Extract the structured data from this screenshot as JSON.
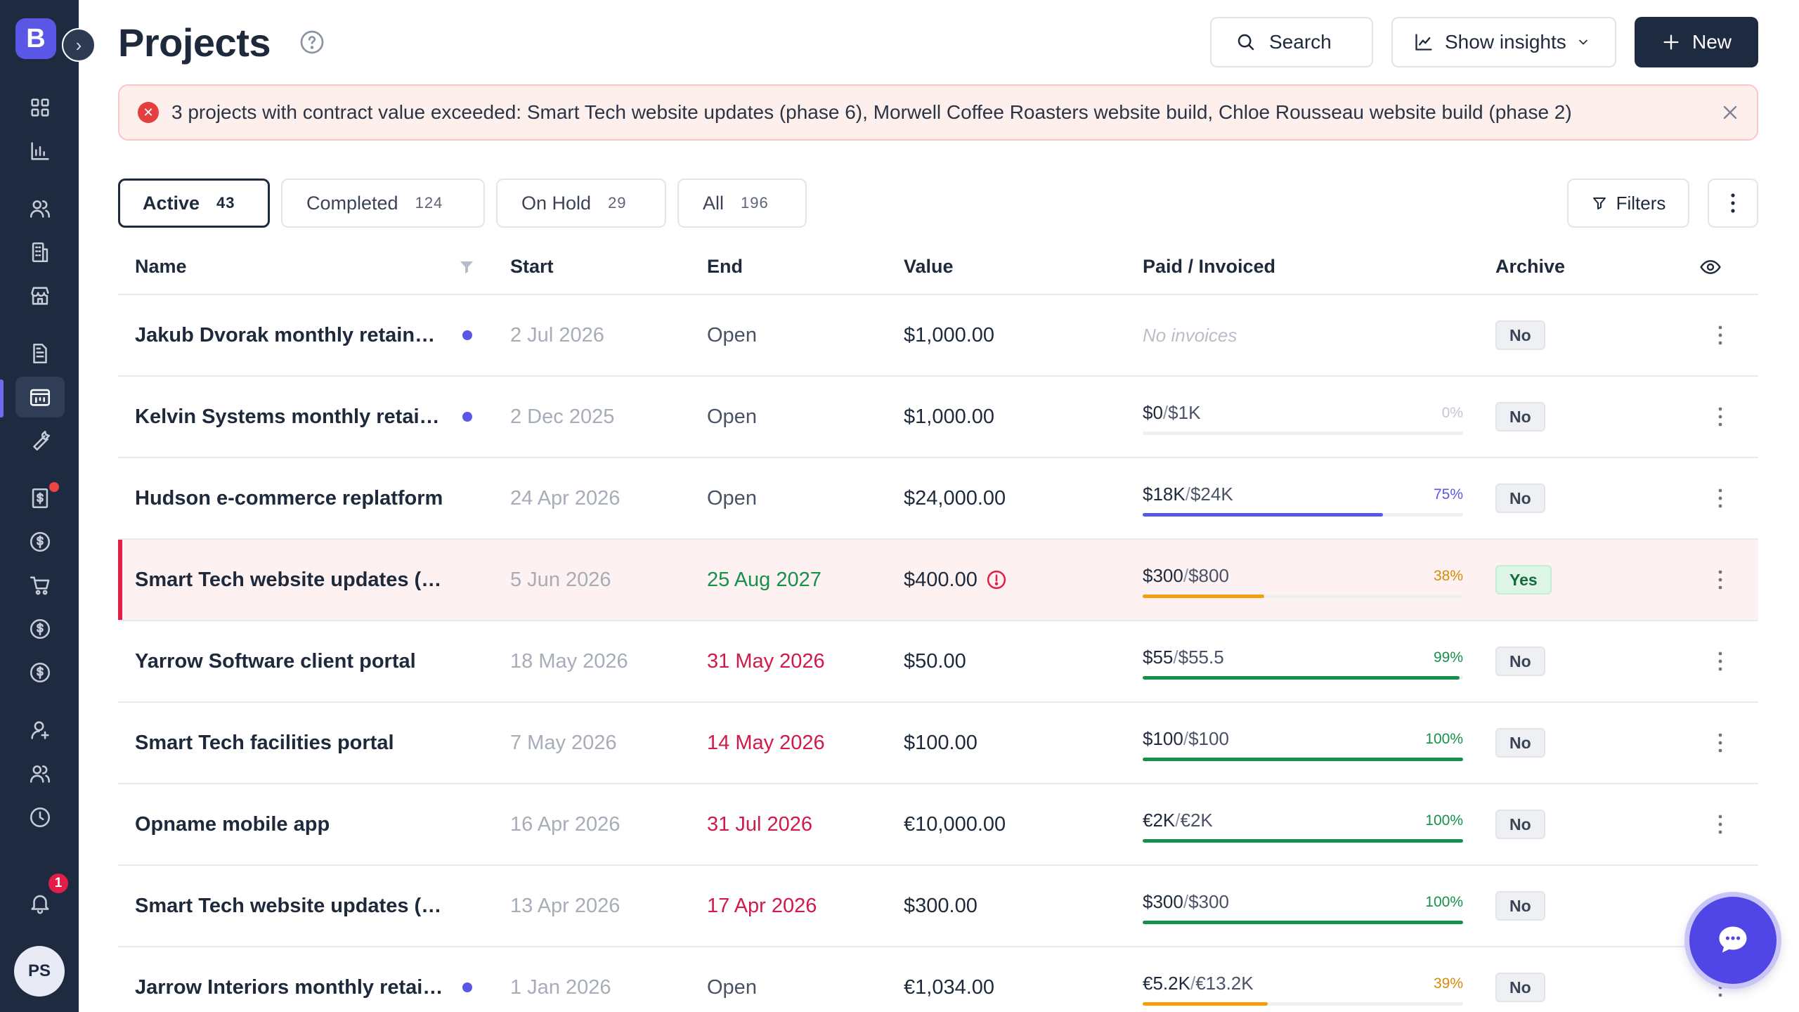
{
  "app": {
    "logo_letter": "B",
    "avatar_initials": "PS",
    "notification_count": "1"
  },
  "header": {
    "title": "Projects",
    "search_label": "Search",
    "insights_label": "Show insights",
    "new_label": "New"
  },
  "alert": {
    "message": "3 projects with contract value exceeded: Smart Tech website updates (phase 6), Morwell Coffee Roasters website build, Chloe Rousseau website build (phase 2)"
  },
  "tabs": [
    {
      "label": "Active",
      "count": "43"
    },
    {
      "label": "Completed",
      "count": "124"
    },
    {
      "label": "On Hold",
      "count": "29"
    },
    {
      "label": "All",
      "count": "196"
    }
  ],
  "filters_label": "Filters",
  "columns": {
    "name": "Name",
    "start": "Start",
    "end": "End",
    "value": "Value",
    "paid": "Paid / Invoiced",
    "archive": "Archive"
  },
  "colors": {
    "accent": "#5b57e6",
    "sidebar": "#1e2a3f",
    "danger": "#e11d48",
    "success": "#16914b",
    "warning": "#f59e0b"
  },
  "rows": [
    {
      "name": "Jakub Dvorak monthly retainer...",
      "dot": true,
      "start": "2 Jul 2026",
      "end": "Open",
      "end_status": "open",
      "value": "$1,000.00",
      "warning": false,
      "no_invoices": "No invoices",
      "paid": "",
      "invoiced": "",
      "percent_label": "",
      "percent": null,
      "archive": "No"
    },
    {
      "name": "Kelvin Systems monthly retainer",
      "dot": true,
      "start": "2 Dec 2025",
      "end": "Open",
      "end_status": "open",
      "value": "$1,000.00",
      "warning": false,
      "paid": "$0",
      "invoiced": "$1K",
      "percent_label": "0%",
      "percent": 0,
      "archive": "No"
    },
    {
      "name": "Hudson e-commerce replatform",
      "dot": false,
      "start": "24 Apr 2026",
      "end": "Open",
      "end_status": "open",
      "value": "$24,000.00",
      "warning": false,
      "paid": "$18K",
      "invoiced": "$24K",
      "percent_label": "75%",
      "percent": 75,
      "archive": "No"
    },
    {
      "name": "Smart Tech website updates (pha...",
      "dot": false,
      "start": "5 Jun 2026",
      "end": "25 Aug 2027",
      "end_status": "future",
      "value": "$400.00",
      "warning": true,
      "paid": "$300",
      "invoiced": "$800",
      "percent_label": "38%",
      "percent": 38,
      "archive": "Yes",
      "highlight": true
    },
    {
      "name": "Yarrow Software client portal",
      "dot": false,
      "start": "18 May 2026",
      "end": "31 May 2026",
      "end_status": "overdue",
      "value": "$50.00",
      "warning": false,
      "paid": "$55",
      "invoiced": "$55.5",
      "percent_label": "99%",
      "percent": 99,
      "archive": "No"
    },
    {
      "name": "Smart Tech facilities portal",
      "dot": false,
      "start": "7 May 2026",
      "end": "14 May 2026",
      "end_status": "overdue",
      "value": "$100.00",
      "warning": false,
      "paid": "$100",
      "invoiced": "$100",
      "percent_label": "100%",
      "percent": 100,
      "archive": "No"
    },
    {
      "name": "Opname mobile app",
      "dot": false,
      "start": "16 Apr 2026",
      "end": "31 Jul 2026",
      "end_status": "overdue",
      "value": "€10,000.00",
      "warning": false,
      "paid": "€2K",
      "invoiced": "€2K",
      "percent_label": "100%",
      "percent": 100,
      "archive": "No"
    },
    {
      "name": "Smart Tech website updates (pha...",
      "dot": false,
      "start": "13 Apr 2026",
      "end": "17 Apr 2026",
      "end_status": "overdue",
      "value": "$300.00",
      "warning": false,
      "paid": "$300",
      "invoiced": "$300",
      "percent_label": "100%",
      "percent": 100,
      "archive": "No"
    },
    {
      "name": "Jarrow Interiors monthly retain...",
      "dot": true,
      "start": "1 Jan 2026",
      "end": "Open",
      "end_status": "open",
      "value": "€1,034.00",
      "warning": false,
      "paid": "€5.2K",
      "invoiced": "€13.2K",
      "percent_label": "39%",
      "percent": 39,
      "archive": "No"
    }
  ]
}
